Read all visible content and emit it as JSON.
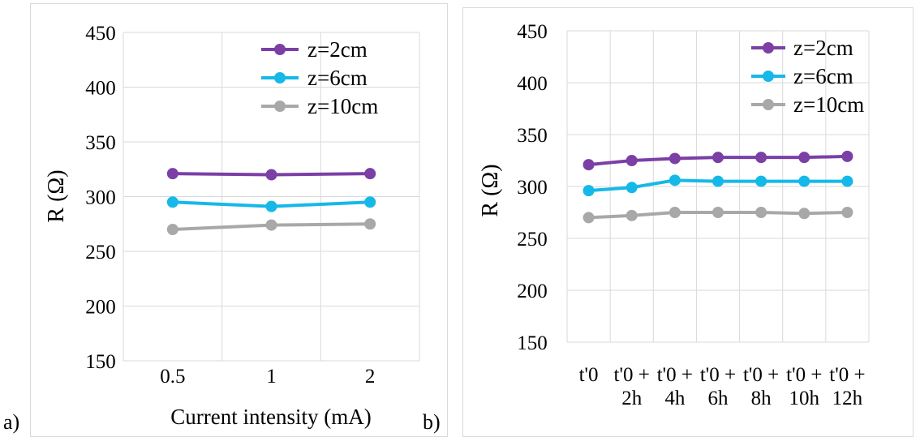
{
  "panel_labels": [
    "a)",
    "b)"
  ],
  "chart_data": [
    {
      "type": "line",
      "panel": "a)",
      "categories": [
        "0.5",
        "1",
        "2"
      ],
      "xlabel": "Current intensity (mA)",
      "ylabel": "R (Ω)",
      "ylim": [
        150,
        450
      ],
      "yticks": [
        150,
        200,
        250,
        300,
        350,
        400,
        450
      ],
      "grid": true,
      "legend": "top-right",
      "series": [
        {
          "name": "z=2cm",
          "color": "#7b3fa6",
          "values": [
            321,
            320,
            321
          ]
        },
        {
          "name": "z=6cm",
          "color": "#16b8e8",
          "values": [
            295,
            291,
            295
          ]
        },
        {
          "name": "z=10cm",
          "color": "#a8a8a8",
          "values": [
            270,
            274,
            275
          ]
        }
      ]
    },
    {
      "type": "line",
      "panel": "b)",
      "categories": [
        "t'0",
        "t'0 + 2h",
        "t'0 + 4h",
        "t'0 + 6h",
        "t'0 + 8h",
        "t'0 + 10h",
        "t'0 + 12h"
      ],
      "category_lines": [
        [
          "t'0",
          ""
        ],
        [
          "t'0 +",
          "2h"
        ],
        [
          "t'0 +",
          "4h"
        ],
        [
          "t'0 +",
          "6h"
        ],
        [
          "t'0 +",
          "8h"
        ],
        [
          "t'0 +",
          "10h"
        ],
        [
          "t'0 +",
          "12h"
        ]
      ],
      "xlabel": "",
      "ylabel": "R (Ω)",
      "ylim": [
        150,
        450
      ],
      "yticks": [
        150,
        200,
        250,
        300,
        350,
        400,
        450
      ],
      "grid": true,
      "legend": "top-right",
      "series": [
        {
          "name": "z=2cm",
          "color": "#7b3fa6",
          "values": [
            321,
            325,
            327,
            328,
            328,
            328,
            329
          ]
        },
        {
          "name": "z=6cm",
          "color": "#16b8e8",
          "values": [
            296,
            299,
            306,
            305,
            305,
            305,
            305
          ]
        },
        {
          "name": "z=10cm",
          "color": "#a8a8a8",
          "values": [
            270,
            272,
            275,
            275,
            275,
            274,
            275
          ]
        }
      ]
    }
  ]
}
